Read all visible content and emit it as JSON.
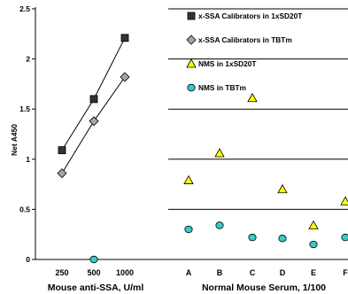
{
  "chart_data": {
    "type": "scatter",
    "ylabel": "Net A450",
    "ylim": [
      0,
      2.5
    ],
    "yticks": [
      "0",
      "0.5",
      "1",
      "1.5",
      "2",
      "2.5"
    ],
    "grid": true,
    "legend_position": "top-right",
    "panels": [
      {
        "xlabel": "Mouse anti-SSA, U/ml",
        "categories": [
          "250",
          "500",
          "1000"
        ]
      },
      {
        "xlabel": "Normal Mouse Serum, 1/100",
        "categories": [
          "A",
          "B",
          "C",
          "D",
          "E",
          "F"
        ]
      }
    ],
    "series": [
      {
        "name": "x-SSA Calibrators in 1xSD20T",
        "panel": 0,
        "marker": "square",
        "color": "#333333",
        "line": true,
        "x": [
          "250",
          "500",
          "1000"
        ],
        "values": [
          1.09,
          1.6,
          2.21
        ]
      },
      {
        "name": "x-SSA Calibrators in TBTm",
        "panel": 0,
        "marker": "diamond",
        "color": "#a6a6a6",
        "line": true,
        "x": [
          "250",
          "500",
          "1000"
        ],
        "values": [
          0.86,
          1.38,
          1.82
        ]
      },
      {
        "name": "NMS in 1xSD20T",
        "panel": 1,
        "marker": "triangle",
        "color": "#ffff00",
        "line": false,
        "x": [
          "A",
          "B",
          "C",
          "D",
          "E",
          "F"
        ],
        "values": [
          0.79,
          1.06,
          1.61,
          0.7,
          0.34,
          0.58
        ]
      },
      {
        "name": "NMS in TBTm",
        "panel": 1,
        "marker": "circle",
        "color": "#33cccc",
        "line": false,
        "x": [
          "500",
          "A",
          "B",
          "C",
          "D",
          "E",
          "F"
        ],
        "values": [
          0.0,
          0.3,
          0.34,
          0.22,
          0.21,
          0.15,
          0.22
        ]
      }
    ]
  }
}
